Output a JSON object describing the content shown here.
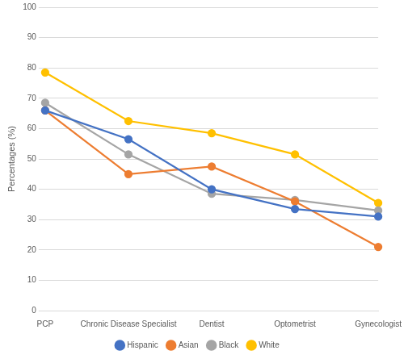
{
  "chart_data": {
    "type": "line",
    "ylabel": "Percentages (%)",
    "categories": [
      "PCP",
      "Chronic Disease Specialist",
      "Dentist",
      "Optometrist",
      "Gynecologist"
    ],
    "series": [
      {
        "name": "Hispanic",
        "color": "#4472c4",
        "values": [
          66,
          56.5,
          40,
          33.5,
          31
        ]
      },
      {
        "name": "Asian",
        "color": "#ed7d31",
        "values": [
          66,
          45,
          47.5,
          36,
          21
        ]
      },
      {
        "name": "Black",
        "color": "#a5a5a5",
        "values": [
          68.5,
          51.5,
          38.5,
          36.5,
          33
        ]
      },
      {
        "name": "White",
        "color": "#ffc000",
        "values": [
          78.5,
          62.5,
          58.5,
          51.5,
          35.5
        ]
      }
    ],
    "ylim": [
      0,
      100
    ],
    "yticks": [
      0,
      10,
      20,
      30,
      40,
      50,
      60,
      70,
      80,
      90,
      100
    ],
    "grid": true,
    "legend": "bottom",
    "marker": "circle"
  }
}
